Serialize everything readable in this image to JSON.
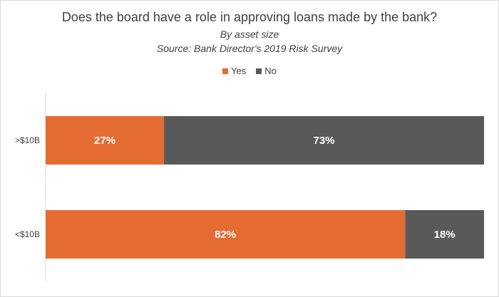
{
  "chart_data": {
    "type": "bar",
    "orientation": "horizontal",
    "stacked": true,
    "title": "Does the board have a role in approving loans made by the bank?",
    "subtitle": "By asset size",
    "source": "Source: Bank Director's 2019 Risk Survey",
    "categories": [
      ">$10B",
      "<$10B"
    ],
    "series": [
      {
        "name": "Yes",
        "values": [
          27,
          82
        ],
        "labels": [
          "27%",
          "82%"
        ],
        "color": "#E46C33"
      },
      {
        "name": "No",
        "values": [
          73,
          18
        ],
        "labels": [
          "73%",
          "18%"
        ],
        "color": "#595959"
      }
    ],
    "xlim": [
      0,
      100
    ],
    "grid": false,
    "legend_position": "top"
  }
}
